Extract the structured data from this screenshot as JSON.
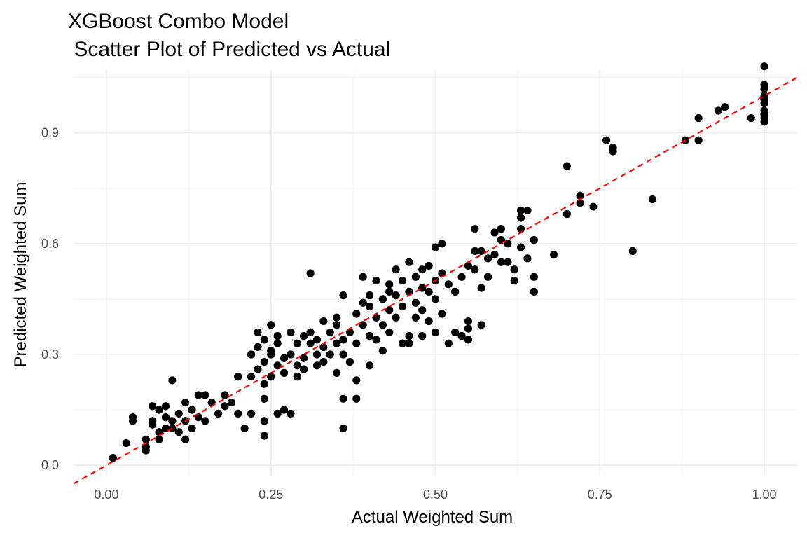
{
  "chart_data": {
    "type": "scatter",
    "title": "XGBoost Combo Model",
    "subtitle": " Scatter Plot of Predicted vs Actual",
    "xlabel": "Actual Weighted Sum",
    "ylabel": "Predicted Weighted Sum",
    "xlim": [
      -0.05,
      1.05
    ],
    "ylim": [
      -0.03,
      1.07
    ],
    "x_ticks": [
      0.0,
      0.25,
      0.5,
      0.75,
      1.0
    ],
    "x_tick_labels": [
      "0.00",
      "0.25",
      "0.50",
      "0.75",
      "1.00"
    ],
    "y_ticks": [
      0.0,
      0.3,
      0.6,
      0.9
    ],
    "y_tick_labels": [
      "0.0",
      "0.3",
      "0.6",
      "0.9"
    ],
    "grid": true,
    "point_color": "#000000",
    "reference_line": {
      "slope": 1,
      "intercept": 0,
      "color": "#ff0000",
      "style": "dashed"
    },
    "points": [
      [
        0.01,
        0.02
      ],
      [
        0.03,
        0.06
      ],
      [
        0.04,
        0.12
      ],
      [
        0.04,
        0.13
      ],
      [
        0.06,
        0.05
      ],
      [
        0.06,
        0.07
      ],
      [
        0.06,
        0.04
      ],
      [
        0.07,
        0.12
      ],
      [
        0.07,
        0.16
      ],
      [
        0.07,
        0.11
      ],
      [
        0.08,
        0.09
      ],
      [
        0.08,
        0.15
      ],
      [
        0.08,
        0.07
      ],
      [
        0.09,
        0.1
      ],
      [
        0.09,
        0.16
      ],
      [
        0.09,
        0.13
      ],
      [
        0.1,
        0.23
      ],
      [
        0.1,
        0.1
      ],
      [
        0.1,
        0.12
      ],
      [
        0.11,
        0.14
      ],
      [
        0.11,
        0.09
      ],
      [
        0.12,
        0.12
      ],
      [
        0.12,
        0.17
      ],
      [
        0.12,
        0.07
      ],
      [
        0.13,
        0.15
      ],
      [
        0.13,
        0.1
      ],
      [
        0.14,
        0.19
      ],
      [
        0.14,
        0.13
      ],
      [
        0.15,
        0.19
      ],
      [
        0.15,
        0.12
      ],
      [
        0.16,
        0.17
      ],
      [
        0.17,
        0.14
      ],
      [
        0.18,
        0.19
      ],
      [
        0.18,
        0.16
      ],
      [
        0.19,
        0.17
      ],
      [
        0.2,
        0.24
      ],
      [
        0.2,
        0.14
      ],
      [
        0.21,
        0.1
      ],
      [
        0.22,
        0.24
      ],
      [
        0.22,
        0.3
      ],
      [
        0.22,
        0.14
      ],
      [
        0.23,
        0.26
      ],
      [
        0.23,
        0.32
      ],
      [
        0.23,
        0.36
      ],
      [
        0.24,
        0.28
      ],
      [
        0.24,
        0.34
      ],
      [
        0.24,
        0.18
      ],
      [
        0.24,
        0.22
      ],
      [
        0.24,
        0.12
      ],
      [
        0.24,
        0.08
      ],
      [
        0.25,
        0.3
      ],
      [
        0.25,
        0.38
      ],
      [
        0.25,
        0.24
      ],
      [
        0.25,
        0.31
      ],
      [
        0.26,
        0.27
      ],
      [
        0.26,
        0.35
      ],
      [
        0.26,
        0.33
      ],
      [
        0.26,
        0.14
      ],
      [
        0.27,
        0.29
      ],
      [
        0.27,
        0.25
      ],
      [
        0.27,
        0.15
      ],
      [
        0.28,
        0.3
      ],
      [
        0.28,
        0.36
      ],
      [
        0.28,
        0.14
      ],
      [
        0.29,
        0.27
      ],
      [
        0.29,
        0.33
      ],
      [
        0.29,
        0.24
      ],
      [
        0.3,
        0.35
      ],
      [
        0.3,
        0.29
      ],
      [
        0.3,
        0.26
      ],
      [
        0.31,
        0.52
      ],
      [
        0.31,
        0.33
      ],
      [
        0.31,
        0.36
      ],
      [
        0.32,
        0.3
      ],
      [
        0.32,
        0.34
      ],
      [
        0.32,
        0.27
      ],
      [
        0.33,
        0.39
      ],
      [
        0.33,
        0.32
      ],
      [
        0.33,
        0.28
      ],
      [
        0.34,
        0.36
      ],
      [
        0.34,
        0.3
      ],
      [
        0.35,
        0.4
      ],
      [
        0.35,
        0.33
      ],
      [
        0.35,
        0.25
      ],
      [
        0.35,
        0.38
      ],
      [
        0.36,
        0.46
      ],
      [
        0.36,
        0.34
      ],
      [
        0.36,
        0.3
      ],
      [
        0.36,
        0.18
      ],
      [
        0.36,
        0.1
      ],
      [
        0.37,
        0.36
      ],
      [
        0.37,
        0.28
      ],
      [
        0.38,
        0.41
      ],
      [
        0.38,
        0.33
      ],
      [
        0.38,
        0.18
      ],
      [
        0.38,
        0.23
      ],
      [
        0.39,
        0.51
      ],
      [
        0.39,
        0.38
      ],
      [
        0.39,
        0.44
      ],
      [
        0.4,
        0.46
      ],
      [
        0.4,
        0.43
      ],
      [
        0.4,
        0.35
      ],
      [
        0.4,
        0.27
      ],
      [
        0.41,
        0.5
      ],
      [
        0.41,
        0.4
      ],
      [
        0.41,
        0.34
      ],
      [
        0.42,
        0.45
      ],
      [
        0.42,
        0.38
      ],
      [
        0.42,
        0.31
      ],
      [
        0.43,
        0.49
      ],
      [
        0.43,
        0.47
      ],
      [
        0.43,
        0.42
      ],
      [
        0.43,
        0.36
      ],
      [
        0.44,
        0.53
      ],
      [
        0.44,
        0.46
      ],
      [
        0.44,
        0.4
      ],
      [
        0.45,
        0.5
      ],
      [
        0.45,
        0.43
      ],
      [
        0.45,
        0.33
      ],
      [
        0.46,
        0.55
      ],
      [
        0.46,
        0.47
      ],
      [
        0.46,
        0.33
      ],
      [
        0.46,
        0.35
      ],
      [
        0.47,
        0.51
      ],
      [
        0.47,
        0.44
      ],
      [
        0.47,
        0.4
      ],
      [
        0.48,
        0.53
      ],
      [
        0.48,
        0.48
      ],
      [
        0.48,
        0.42
      ],
      [
        0.48,
        0.35
      ],
      [
        0.49,
        0.54
      ],
      [
        0.49,
        0.47
      ],
      [
        0.49,
        0.39
      ],
      [
        0.5,
        0.59
      ],
      [
        0.5,
        0.5
      ],
      [
        0.5,
        0.45
      ],
      [
        0.5,
        0.36
      ],
      [
        0.51,
        0.6
      ],
      [
        0.51,
        0.52
      ],
      [
        0.51,
        0.41
      ],
      [
        0.52,
        0.49
      ],
      [
        0.52,
        0.33
      ],
      [
        0.53,
        0.36
      ],
      [
        0.53,
        0.47
      ],
      [
        0.54,
        0.51
      ],
      [
        0.54,
        0.35
      ],
      [
        0.55,
        0.54
      ],
      [
        0.55,
        0.39
      ],
      [
        0.55,
        0.37
      ],
      [
        0.55,
        0.34
      ],
      [
        0.56,
        0.58
      ],
      [
        0.56,
        0.64
      ],
      [
        0.56,
        0.53
      ],
      [
        0.57,
        0.58
      ],
      [
        0.57,
        0.48
      ],
      [
        0.57,
        0.38
      ],
      [
        0.58,
        0.56
      ],
      [
        0.58,
        0.51
      ],
      [
        0.59,
        0.63
      ],
      [
        0.59,
        0.57
      ],
      [
        0.6,
        0.64
      ],
      [
        0.6,
        0.61
      ],
      [
        0.6,
        0.55
      ],
      [
        0.61,
        0.6
      ],
      [
        0.61,
        0.55
      ],
      [
        0.62,
        0.53
      ],
      [
        0.62,
        0.5
      ],
      [
        0.63,
        0.69
      ],
      [
        0.63,
        0.67
      ],
      [
        0.63,
        0.64
      ],
      [
        0.63,
        0.59
      ],
      [
        0.64,
        0.69
      ],
      [
        0.64,
        0.56
      ],
      [
        0.65,
        0.61
      ],
      [
        0.65,
        0.51
      ],
      [
        0.65,
        0.47
      ],
      [
        0.68,
        0.57
      ],
      [
        0.7,
        0.81
      ],
      [
        0.7,
        0.68
      ],
      [
        0.72,
        0.73
      ],
      [
        0.72,
        0.71
      ],
      [
        0.74,
        0.7
      ],
      [
        0.76,
        0.88
      ],
      [
        0.77,
        0.85
      ],
      [
        0.77,
        0.86
      ],
      [
        0.8,
        0.58
      ],
      [
        0.83,
        0.72
      ],
      [
        0.88,
        0.88
      ],
      [
        0.9,
        0.94
      ],
      [
        0.9,
        0.88
      ],
      [
        0.93,
        0.96
      ],
      [
        0.94,
        0.97
      ],
      [
        0.98,
        0.94
      ],
      [
        1.0,
        1.08
      ],
      [
        1.0,
        1.03
      ],
      [
        1.0,
        1.02
      ],
      [
        1.0,
        1.0
      ],
      [
        1.0,
        0.99
      ],
      [
        1.0,
        0.98
      ],
      [
        1.0,
        0.96
      ],
      [
        1.0,
        0.95
      ],
      [
        1.0,
        0.94
      ],
      [
        1.0,
        0.93
      ]
    ]
  }
}
